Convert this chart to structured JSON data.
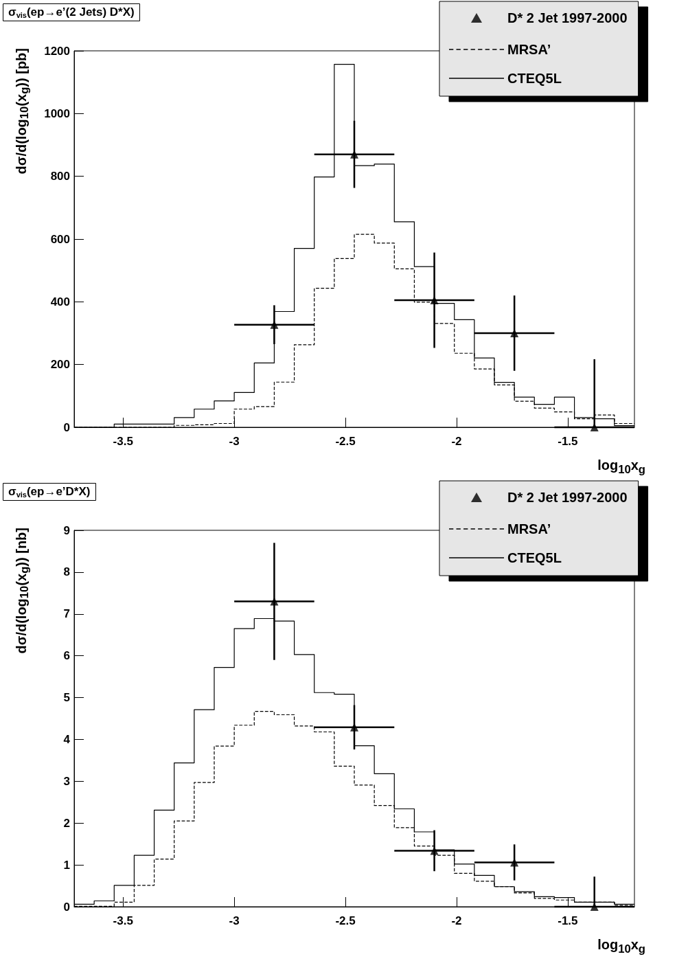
{
  "chart_data": [
    {
      "type": "histogram",
      "title": "σ$_{vis}$(ep→e’(2 Jets) D*X)",
      "xlabel": "log$_{10}$x$_{g}$",
      "ylabel": "dσ/d(log$_{10}$(x$_{g}$)) [pb]",
      "bins": [
        -3.72,
        -3.63,
        -3.54,
        -3.45,
        -3.36,
        -3.27,
        -3.18,
        -3.09,
        -3.0,
        -2.91,
        -2.82,
        -2.73,
        -2.64,
        -2.55,
        -2.46,
        -2.37,
        -2.28,
        -2.19,
        -2.1,
        -2.01,
        -1.92,
        -1.83,
        -1.74,
        -1.65,
        -1.56,
        -1.47,
        -1.38,
        -1.29,
        -1.2
      ],
      "xlim": [
        -3.72,
        -1.2
      ],
      "xticks": [
        -3.5,
        -3,
        -2.5,
        -2,
        -1.5
      ],
      "ylim": [
        0,
        1200
      ],
      "yticks": [
        0,
        200,
        400,
        600,
        800,
        1000,
        1200
      ],
      "grid": false,
      "legend": "top right",
      "series": [
        {
          "name": "D* 2 Jet 1997-2000",
          "type": "scatter",
          "marker": "triangle",
          "color": "#000000",
          "x": [
            -2.82,
            -2.46,
            -2.1,
            -1.74,
            -1.38
          ],
          "values": [
            327,
            870,
            405,
            300,
            0
          ],
          "errors": [
            62,
            107,
            152,
            120,
            [
              0,
              217
            ]
          ],
          "xerrors": [
            0.18,
            0.18,
            0.18,
            0.18,
            0.18
          ]
        },
        {
          "name": "MRSA’",
          "color": "#000000",
          "line_style": "dashed",
          "values": [
            0,
            0,
            0,
            0,
            0,
            6,
            8,
            12,
            58,
            66,
            144,
            263,
            443,
            538,
            615,
            587,
            505,
            399,
            331,
            236,
            186,
            135,
            83,
            61,
            49,
            27,
            39,
            12
          ]
        },
        {
          "name": "CTEQ5L",
          "color": "#000000",
          "line_style": "solid",
          "values": [
            0,
            0,
            10,
            10,
            10,
            31,
            58,
            84,
            111,
            205,
            369,
            570,
            798,
            1157,
            834,
            839,
            655,
            512,
            395,
            343,
            221,
            143,
            96,
            73,
            96,
            31,
            27,
            5
          ]
        }
      ]
    },
    {
      "type": "histogram",
      "title": "σ$_{vis}$(ep→e’D*X)",
      "xlabel": "log$_{10}$x$_{g}$",
      "ylabel": "dσ/d(log$_{10}$(x$_{g}$)) [nb]",
      "bins": [
        -3.72,
        -3.63,
        -3.54,
        -3.45,
        -3.36,
        -3.27,
        -3.18,
        -3.09,
        -3.0,
        -2.91,
        -2.82,
        -2.73,
        -2.64,
        -2.55,
        -2.46,
        -2.37,
        -2.28,
        -2.19,
        -2.1,
        -2.01,
        -1.92,
        -1.83,
        -1.74,
        -1.65,
        -1.56,
        -1.47,
        -1.38,
        -1.29,
        -1.2
      ],
      "xlim": [
        -3.72,
        -1.2
      ],
      "xticks": [
        -3.5,
        -3,
        -2.5,
        -2,
        -1.5
      ],
      "ylim": [
        0,
        9
      ],
      "yticks": [
        0,
        1,
        2,
        3,
        4,
        5,
        6,
        7,
        8,
        9
      ],
      "grid": false,
      "legend": "top right",
      "series": [
        {
          "name": "D* 2 Jet 1997-2000",
          "type": "scatter",
          "marker": "triangle",
          "color": "#000000",
          "x": [
            -2.82,
            -2.46,
            -2.1,
            -1.74,
            -1.38
          ],
          "values": [
            7.3,
            4.29,
            1.34,
            1.06,
            0
          ],
          "errors": [
            1.4,
            0.53,
            0.49,
            0.43,
            [
              0,
              0.72
            ]
          ],
          "xerrors": [
            0.18,
            0.18,
            0.18,
            0.18,
            0.18
          ]
        },
        {
          "name": "MRSA’",
          "color": "#000000",
          "line_style": "dashed",
          "values": [
            0.01,
            0.01,
            0.11,
            0.51,
            1.14,
            2.05,
            2.97,
            3.84,
            4.34,
            4.67,
            4.59,
            4.32,
            4.18,
            3.36,
            2.91,
            2.42,
            1.89,
            1.45,
            1.23,
            0.8,
            0.61,
            0.48,
            0.33,
            0.2,
            0.16,
            0.11,
            0.11,
            0.03
          ]
        },
        {
          "name": "CTEQ5L",
          "color": "#000000",
          "line_style": "solid",
          "values": [
            0.06,
            0.14,
            0.51,
            1.23,
            2.31,
            3.44,
            4.71,
            5.72,
            6.65,
            6.89,
            6.83,
            6.03,
            5.12,
            5.08,
            3.85,
            3.18,
            2.34,
            1.79,
            1.36,
            1.02,
            0.75,
            0.48,
            0.36,
            0.24,
            0.22,
            0.11,
            0.11,
            0.06
          ]
        }
      ]
    }
  ]
}
